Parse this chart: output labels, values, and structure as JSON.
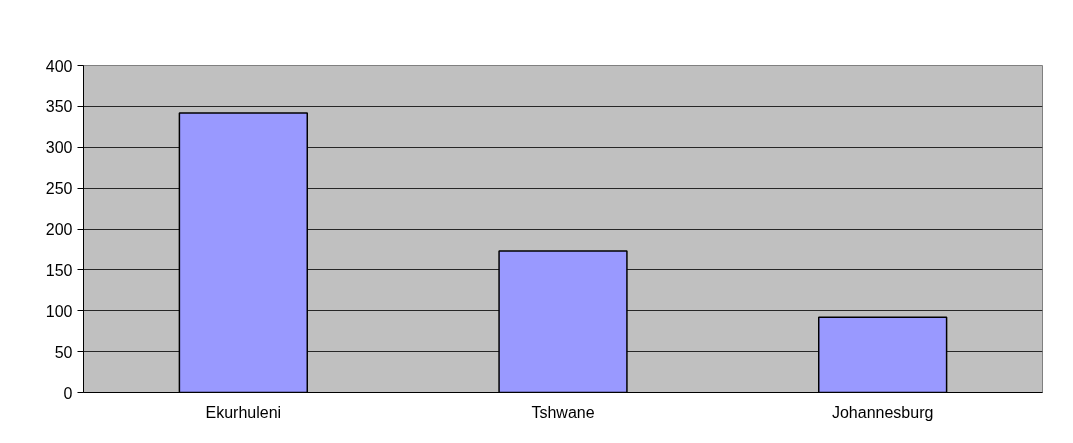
{
  "chart_data": {
    "type": "bar",
    "categories": [
      "Ekurhuleni",
      "Tshwane",
      "Johannesburg"
    ],
    "values": [
      342,
      173,
      92
    ],
    "color": "#9999ff",
    "ylim": [
      0,
      400
    ],
    "yticks": [
      0,
      50,
      100,
      150,
      200,
      250,
      300,
      350,
      400
    ],
    "grid": "y"
  }
}
